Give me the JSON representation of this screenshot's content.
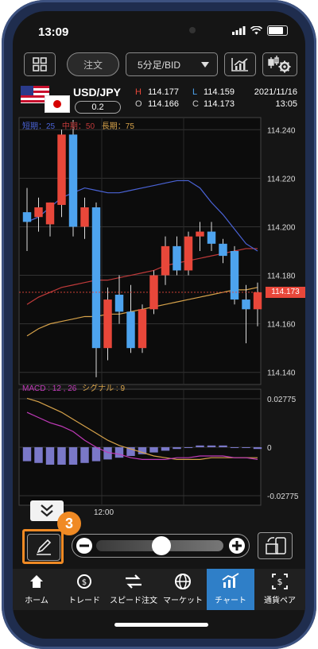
{
  "status": {
    "time": "13:09"
  },
  "toolbar": {
    "order_label": "注文",
    "timeframe_label": "5分足/BID"
  },
  "quote": {
    "pair": "USD/JPY",
    "spread": "0.2",
    "high_label": "H",
    "high_value": "114.177",
    "low_label": "L",
    "low_value": "114.159",
    "open_label": "O",
    "open_value": "114.166",
    "close_label": "C",
    "close_value": "114.173",
    "date": "2021/11/16",
    "time": "13:05"
  },
  "legend": {
    "short_label": "短期：25",
    "mid_label": "中期：50",
    "long_label": "長期：75"
  },
  "price_axis": [
    "114.240",
    "114.220",
    "114.200",
    "114.180",
    "114.160",
    "114.140"
  ],
  "current_price": "114.173",
  "macd": {
    "label": "MACD : 12 , 26",
    "signal_label": "シグナル : 9",
    "axis": [
      "0.02775",
      "0",
      "-0.02775"
    ]
  },
  "time_label": "12:00",
  "callout_number": "3",
  "nav": [
    {
      "label": "ホーム",
      "icon": "home-icon"
    },
    {
      "label": "トレード",
      "icon": "trade-icon"
    },
    {
      "label": "スピード注文",
      "icon": "speed-order-icon"
    },
    {
      "label": "マーケット",
      "icon": "market-icon"
    },
    {
      "label": "チャート",
      "icon": "chart-icon"
    },
    {
      "label": "通貨ペア",
      "icon": "currency-pair-icon"
    }
  ],
  "colors": {
    "up": "#e8473a",
    "down": "#4da3ee",
    "short_ma": "#4a63d6",
    "mid_ma": "#c03a3a",
    "long_ma": "#d6a24a",
    "macd_hist": "#7a78c8",
    "accent": "#f08a24",
    "nav_active": "#2f7fc8"
  },
  "chart_data": {
    "type": "candlestick",
    "x_label": "12:00",
    "ylim": [
      114.135,
      114.245
    ],
    "candles": [
      {
        "o": 114.206,
        "h": 114.216,
        "l": 114.19,
        "c": 114.202
      },
      {
        "o": 114.204,
        "h": 114.212,
        "l": 114.198,
        "c": 114.208
      },
      {
        "o": 114.201,
        "h": 114.21,
        "l": 114.196,
        "c": 114.21
      },
      {
        "o": 114.209,
        "h": 114.24,
        "l": 114.204,
        "c": 114.238
      },
      {
        "o": 114.238,
        "h": 114.244,
        "l": 114.196,
        "c": 114.2
      },
      {
        "o": 114.2,
        "h": 114.212,
        "l": 114.195,
        "c": 114.208
      },
      {
        "o": 114.208,
        "h": 114.21,
        "l": 114.138,
        "c": 114.15
      },
      {
        "o": 114.15,
        "h": 114.175,
        "l": 114.145,
        "c": 114.17
      },
      {
        "o": 114.172,
        "h": 114.18,
        "l": 114.16,
        "c": 114.165
      },
      {
        "o": 114.165,
        "h": 114.176,
        "l": 114.148,
        "c": 114.15
      },
      {
        "o": 114.15,
        "h": 114.168,
        "l": 114.148,
        "c": 114.166
      },
      {
        "o": 114.166,
        "h": 114.182,
        "l": 114.164,
        "c": 114.18
      },
      {
        "o": 114.18,
        "h": 114.196,
        "l": 114.176,
        "c": 114.192
      },
      {
        "o": 114.192,
        "h": 114.196,
        "l": 114.18,
        "c": 114.182
      },
      {
        "o": 114.182,
        "h": 114.198,
        "l": 114.18,
        "c": 114.196
      },
      {
        "o": 114.196,
        "h": 114.202,
        "l": 114.19,
        "c": 114.198
      },
      {
        "o": 114.198,
        "h": 114.202,
        "l": 114.19,
        "c": 114.193
      },
      {
        "o": 114.193,
        "h": 114.195,
        "l": 114.185,
        "c": 114.188
      },
      {
        "o": 114.19,
        "h": 114.192,
        "l": 114.168,
        "c": 114.17
      },
      {
        "o": 114.17,
        "h": 114.176,
        "l": 114.152,
        "c": 114.166
      },
      {
        "o": 114.166,
        "h": 114.177,
        "l": 114.159,
        "c": 114.173
      }
    ],
    "ma_short": [
      114.202,
      114.204,
      114.208,
      114.212,
      114.214,
      114.216,
      114.215,
      114.214,
      114.214,
      114.215,
      114.216,
      114.217,
      114.218,
      114.219,
      114.219,
      114.216,
      114.21,
      114.205,
      114.199,
      114.193,
      114.19
    ],
    "ma_mid": [
      114.168,
      114.171,
      114.173,
      114.175,
      114.176,
      114.177,
      114.178,
      114.178,
      114.179,
      114.18,
      114.181,
      114.182,
      114.184,
      114.185,
      114.186,
      114.187,
      114.188,
      114.189,
      114.19,
      114.191,
      114.191
    ],
    "ma_long": [
      114.155,
      114.158,
      114.16,
      114.161,
      114.162,
      114.163,
      114.163,
      114.164,
      114.164,
      114.165,
      114.166,
      114.167,
      114.168,
      114.169,
      114.17,
      114.171,
      114.172,
      114.173,
      114.174,
      114.174,
      114.175
    ],
    "macd_ylim": [
      -0.02775,
      0.02775
    ],
    "macd_line": [
      0.02,
      0.017,
      0.014,
      0.012,
      0.009,
      0.004,
      0.0,
      -0.003,
      -0.004,
      -0.006,
      -0.007,
      -0.007,
      -0.007,
      -0.006,
      -0.006,
      -0.005,
      -0.005,
      -0.005,
      -0.006,
      -0.006,
      -0.007
    ],
    "signal_line": [
      0.028,
      0.026,
      0.023,
      0.02,
      0.016,
      0.012,
      0.008,
      0.004,
      0.001,
      -0.001,
      -0.003,
      -0.005,
      -0.006,
      -0.007,
      -0.007,
      -0.007,
      -0.006,
      -0.006,
      -0.006,
      -0.006,
      -0.006
    ],
    "macd_hist": [
      -0.008,
      -0.009,
      -0.01,
      -0.01,
      -0.01,
      -0.009,
      -0.008,
      -0.007,
      -0.006,
      -0.005,
      -0.004,
      -0.003,
      -0.002,
      -0.001,
      0.0,
      0.001,
      0.001,
      0.001,
      0.0,
      0.0,
      -0.001
    ]
  }
}
